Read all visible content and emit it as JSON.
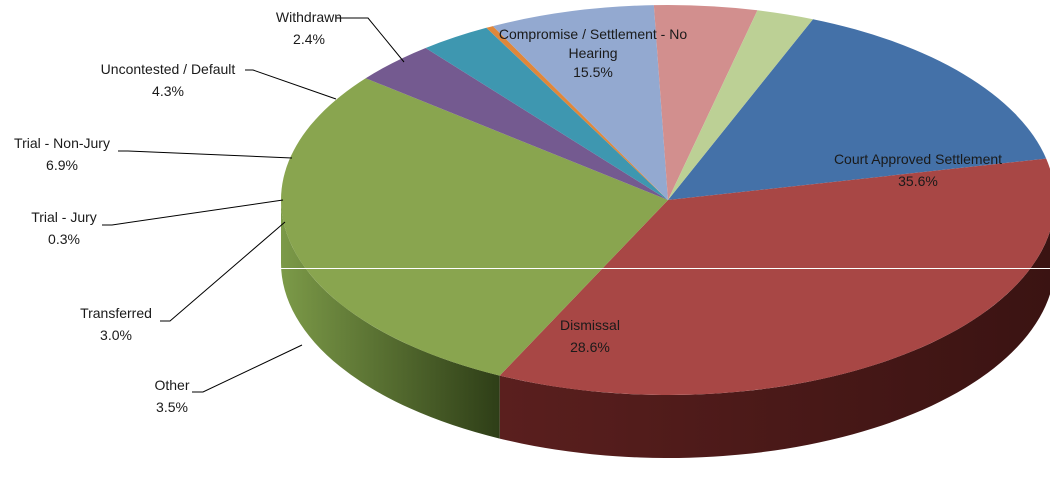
{
  "chart_data": {
    "type": "pie",
    "three_d": true,
    "title": "",
    "legend": "none",
    "slices": [
      {
        "name": "Compromise / Settlement - No Hearing",
        "value": 15.5,
        "label": "15.5%",
        "color": "#4471a8",
        "side_color": "#2b4a72"
      },
      {
        "name": "Court Approved Settlement",
        "value": 35.6,
        "label": "35.6%",
        "color": "#a84745",
        "side_color": "#4a1a19"
      },
      {
        "name": "Dismissal",
        "value": 28.6,
        "label": "28.6%",
        "color": "#89a54f",
        "side_color": "#5c7a32"
      },
      {
        "name": "Other",
        "value": 3.5,
        "label": "3.5%",
        "color": "#745a90",
        "side_color": "#4e3a64"
      },
      {
        "name": "Transferred",
        "value": 3.0,
        "label": "3.0%",
        "color": "#3e97b0",
        "side_color": "#2a6e82"
      },
      {
        "name": "Trial - Jury",
        "value": 0.3,
        "label": "0.3%",
        "color": "#e0873a",
        "side_color": "#a0601f"
      },
      {
        "name": "Trial - Non-Jury",
        "value": 6.9,
        "label": "6.9%",
        "color": "#93a9d0",
        "side_color": "#6d84ab"
      },
      {
        "name": "Uncontested / Default",
        "value": 4.3,
        "label": "4.3%",
        "color": "#d28f8e",
        "side_color": "#a86867"
      },
      {
        "name": "Withdrawn",
        "value": 2.4,
        "label": "2.4%",
        "color": "#bcd095",
        "side_color": "#95aa6d"
      }
    ]
  },
  "labels": {
    "compromise": [
      "Compromise / Settlement - No",
      "Hearing",
      "15.5%"
    ],
    "court": [
      "Court Approved Settlement",
      "35.6%"
    ],
    "dismissal": [
      "Dismissal",
      "28.6%"
    ],
    "other": [
      "Other",
      "3.5%"
    ],
    "transferred": [
      "Transferred",
      "3.0%"
    ],
    "trial_jury": [
      "Trial - Jury",
      "0.3%"
    ],
    "trial_nonjury": [
      "Trial - Non-Jury",
      "6.9%"
    ],
    "uncontested": [
      "Uncontested / Default",
      "4.3%"
    ],
    "withdrawn": [
      "Withdrawn",
      "2.4%"
    ]
  }
}
